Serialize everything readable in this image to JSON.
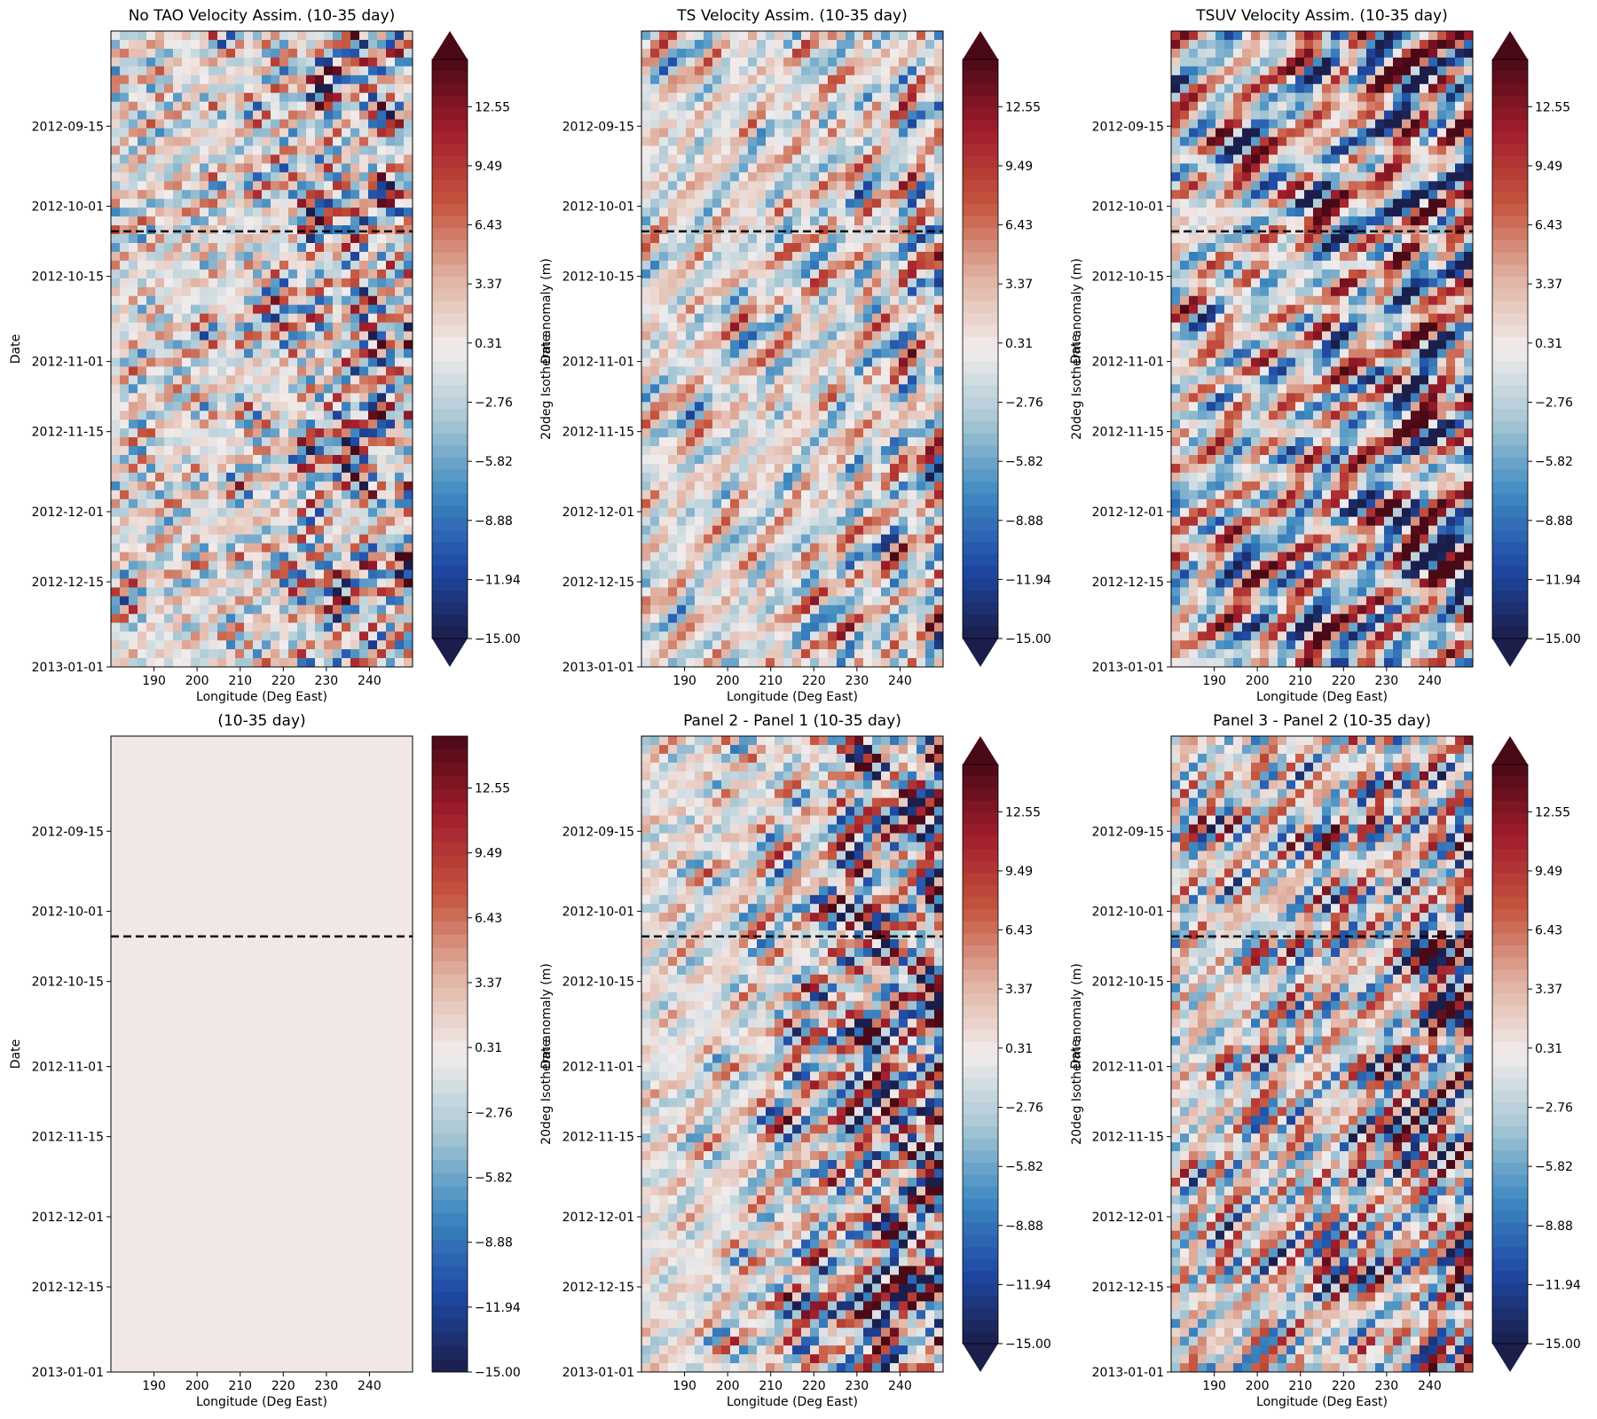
{
  "figure": {
    "colorbar_label": "20deg Isotherm anomaly (m)",
    "colorbar_ticks": [
      "12.55",
      "9.49",
      "6.43",
      "3.37",
      "0.31",
      "−2.76",
      "−5.82",
      "−8.88",
      "−11.94",
      "−15.00"
    ],
    "colormap": [
      "#1b1e4a",
      "#1f4aa6",
      "#3f8ac1",
      "#a7c7d4",
      "#f1ecec",
      "#e0b1a0",
      "#c5553e",
      "#a11d2c",
      "#4a0916"
    ],
    "date_ticks": [
      "2012-09-15",
      "2012-10-01",
      "2012-10-15",
      "2012-11-01",
      "2012-11-15",
      "2012-12-01",
      "2012-12-15",
      "2013-01-01"
    ],
    "lon_ticks": [
      "190",
      "200",
      "210",
      "220",
      "230",
      "240"
    ]
  },
  "chart_data": [
    {
      "type": "heatmap",
      "title": "No TAO Velocity Assim. (10-35 day)",
      "xlabel": "Longitude (Deg East)",
      "ylabel": "Date",
      "xlim": [
        180,
        250
      ],
      "ylim": [
        "2013-01-01",
        "2012-08-27"
      ],
      "x_ticks": [
        190,
        200,
        210,
        220,
        230,
        240
      ],
      "y_ticks": [
        "2012-09-15",
        "2012-10-01",
        "2012-10-15",
        "2012-11-01",
        "2012-11-15",
        "2012-12-01",
        "2012-12-15",
        "2013-01-01"
      ],
      "colorbar_range": [
        -15.0,
        15.0
      ],
      "colorbar_extend": "both",
      "reference_line_date": "2012-10-06",
      "pattern": "westward-propagating 10-35 day anomalies, strongest east of 230E"
    },
    {
      "type": "heatmap",
      "title": "TS Velocity Assim. (10-35 day)",
      "xlabel": "Longitude (Deg East)",
      "ylabel": "Date",
      "xlim": [
        180,
        250
      ],
      "ylim": [
        "2013-01-01",
        "2012-08-27"
      ],
      "x_ticks": [
        190,
        200,
        210,
        220,
        230,
        240
      ],
      "y_ticks": [
        "2012-09-15",
        "2012-10-01",
        "2012-10-15",
        "2012-11-01",
        "2012-11-15",
        "2012-12-01",
        "2012-12-15",
        "2013-01-01"
      ],
      "colorbar_range": [
        -15.0,
        15.0
      ],
      "colorbar_extend": "both",
      "reference_line_date": "2012-10-06",
      "pattern": "westward-propagating 10-35 day anomalies"
    },
    {
      "type": "heatmap",
      "title": "TSUV Velocity Assim. (10-35 day)",
      "xlabel": "Longitude (Deg East)",
      "ylabel": "Date",
      "xlim": [
        180,
        250
      ],
      "ylim": [
        "2013-01-01",
        "2012-08-27"
      ],
      "x_ticks": [
        190,
        200,
        210,
        220,
        230,
        240
      ],
      "y_ticks": [
        "2012-09-15",
        "2012-10-01",
        "2012-10-15",
        "2012-11-01",
        "2012-11-15",
        "2012-12-01",
        "2012-12-15",
        "2013-01-01"
      ],
      "colorbar_range": [
        -15.0,
        15.0
      ],
      "colorbar_extend": "both",
      "reference_line_date": "2012-10-06",
      "pattern": "large-amplitude anomalies, strongest near 240E"
    },
    {
      "type": "heatmap",
      "title": "(10-35 day)",
      "xlabel": "Longitude (Deg East)",
      "ylabel": "Date",
      "xlim": [
        180,
        250
      ],
      "ylim": [
        "2013-01-01",
        "2012-08-27"
      ],
      "x_ticks": [
        190,
        200,
        210,
        220,
        230,
        240
      ],
      "y_ticks": [
        "2012-09-15",
        "2012-10-01",
        "2012-10-15",
        "2012-11-01",
        "2012-11-15",
        "2012-12-01",
        "2012-12-15",
        "2013-01-01"
      ],
      "colorbar_range": [
        -15.0,
        15.0
      ],
      "colorbar_extend": "neither",
      "reference_line_date": "2012-10-06",
      "pattern": "uniform near-zero field"
    },
    {
      "type": "heatmap",
      "title": "Panel 2 - Panel 1 (10-35 day)",
      "xlabel": "Longitude (Deg East)",
      "ylabel": "Date",
      "xlim": [
        180,
        250
      ],
      "ylim": [
        "2013-01-01",
        "2012-08-27"
      ],
      "x_ticks": [
        190,
        200,
        210,
        220,
        230,
        240
      ],
      "y_ticks": [
        "2012-09-15",
        "2012-10-01",
        "2012-10-15",
        "2012-11-01",
        "2012-11-15",
        "2012-12-01",
        "2012-12-15",
        "2013-01-01"
      ],
      "colorbar_range": [
        -15.0,
        15.0
      ],
      "colorbar_extend": "both",
      "reference_line_date": "2012-10-06",
      "pattern": "strong diagonal westward-propagating bands, largest east of 230E after 2012-10-01"
    },
    {
      "type": "heatmap",
      "title": "Panel 3 - Panel 2 (10-35 day)",
      "xlabel": "Longitude (Deg East)",
      "ylabel": "Date",
      "xlim": [
        180,
        250
      ],
      "ylim": [
        "2013-01-01",
        "2012-08-27"
      ],
      "x_ticks": [
        190,
        200,
        210,
        220,
        230,
        240
      ],
      "y_ticks": [
        "2012-09-15",
        "2012-10-01",
        "2012-10-15",
        "2012-11-01",
        "2012-11-15",
        "2012-12-01",
        "2012-12-15",
        "2013-01-01"
      ],
      "colorbar_range": [
        -15.0,
        15.0
      ],
      "colorbar_extend": "both",
      "reference_line_date": "2012-10-06",
      "pattern": "mixed-sign anomalies with diagonal bands in the east"
    }
  ]
}
